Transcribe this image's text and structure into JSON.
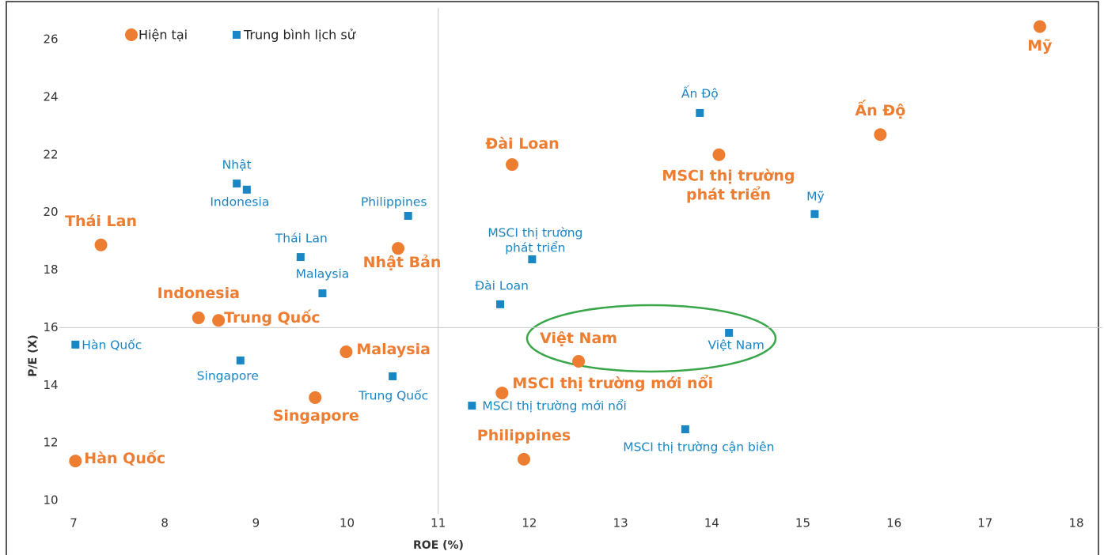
{
  "chart_data": {
    "type": "scatter",
    "x_label": "ROE (%)",
    "y_label": "P/E (X)",
    "xlim": [
      7,
      18
    ],
    "ylim": [
      10,
      26
    ],
    "xticks": [
      7,
      8,
      9,
      10,
      11,
      12,
      13,
      14,
      15,
      16,
      17,
      18
    ],
    "yticks": [
      10,
      12,
      14,
      16,
      18,
      20,
      22,
      24,
      26
    ],
    "reference_lines": {
      "x": 11,
      "y": 16
    },
    "legend": "top-left",
    "series": [
      {
        "name": "Hiện tại",
        "color": "#ed7d31",
        "marker": "circle",
        "labels": [
          "Mỹ",
          "Ấn Độ",
          "MSCI thị trường phát triển",
          "Đài Loan",
          "Thái Lan",
          "Nhật Bản",
          "Indonesia",
          "Trung Quốc",
          "Malaysia",
          "Việt Nam",
          "MSCI thị trường mới nổi",
          "Singapore",
          "Philippines",
          "Hàn Quốc"
        ],
        "x": [
          17.6,
          15.85,
          14.08,
          11.81,
          7.3,
          10.56,
          8.37,
          8.59,
          9.99,
          12.54,
          11.7,
          9.65,
          11.94,
          7.02
        ],
        "values": [
          26.45,
          22.7,
          22.0,
          21.66,
          18.87,
          18.75,
          16.34,
          16.25,
          15.16,
          14.83,
          13.73,
          13.57,
          11.43,
          11.37
        ]
      },
      {
        "name": "Trung bình lịch sử",
        "color": "#1a86c4",
        "marker": "square",
        "labels": [
          "Ấn Độ",
          "Nhật",
          "Indonesia",
          "Philippines",
          "Mỹ",
          "MSCI thị trường phát triển",
          "Thái Lan",
          "Malaysia",
          "Đài Loan",
          "Việt Nam",
          "Hàn Quốc",
          "Singapore",
          "Trung Quốc",
          "MSCI thị trường mới nổi",
          "MSCI thị trường cận biên"
        ],
        "x": [
          13.87,
          8.79,
          8.9,
          10.67,
          15.13,
          12.03,
          9.49,
          9.73,
          11.68,
          14.19,
          7.02,
          8.83,
          10.5,
          11.37,
          13.71
        ],
        "values": [
          23.45,
          21.0,
          20.79,
          19.88,
          19.94,
          18.37,
          18.45,
          17.19,
          16.81,
          15.82,
          15.41,
          14.86,
          14.31,
          13.29,
          12.47
        ]
      }
    ]
  }
}
